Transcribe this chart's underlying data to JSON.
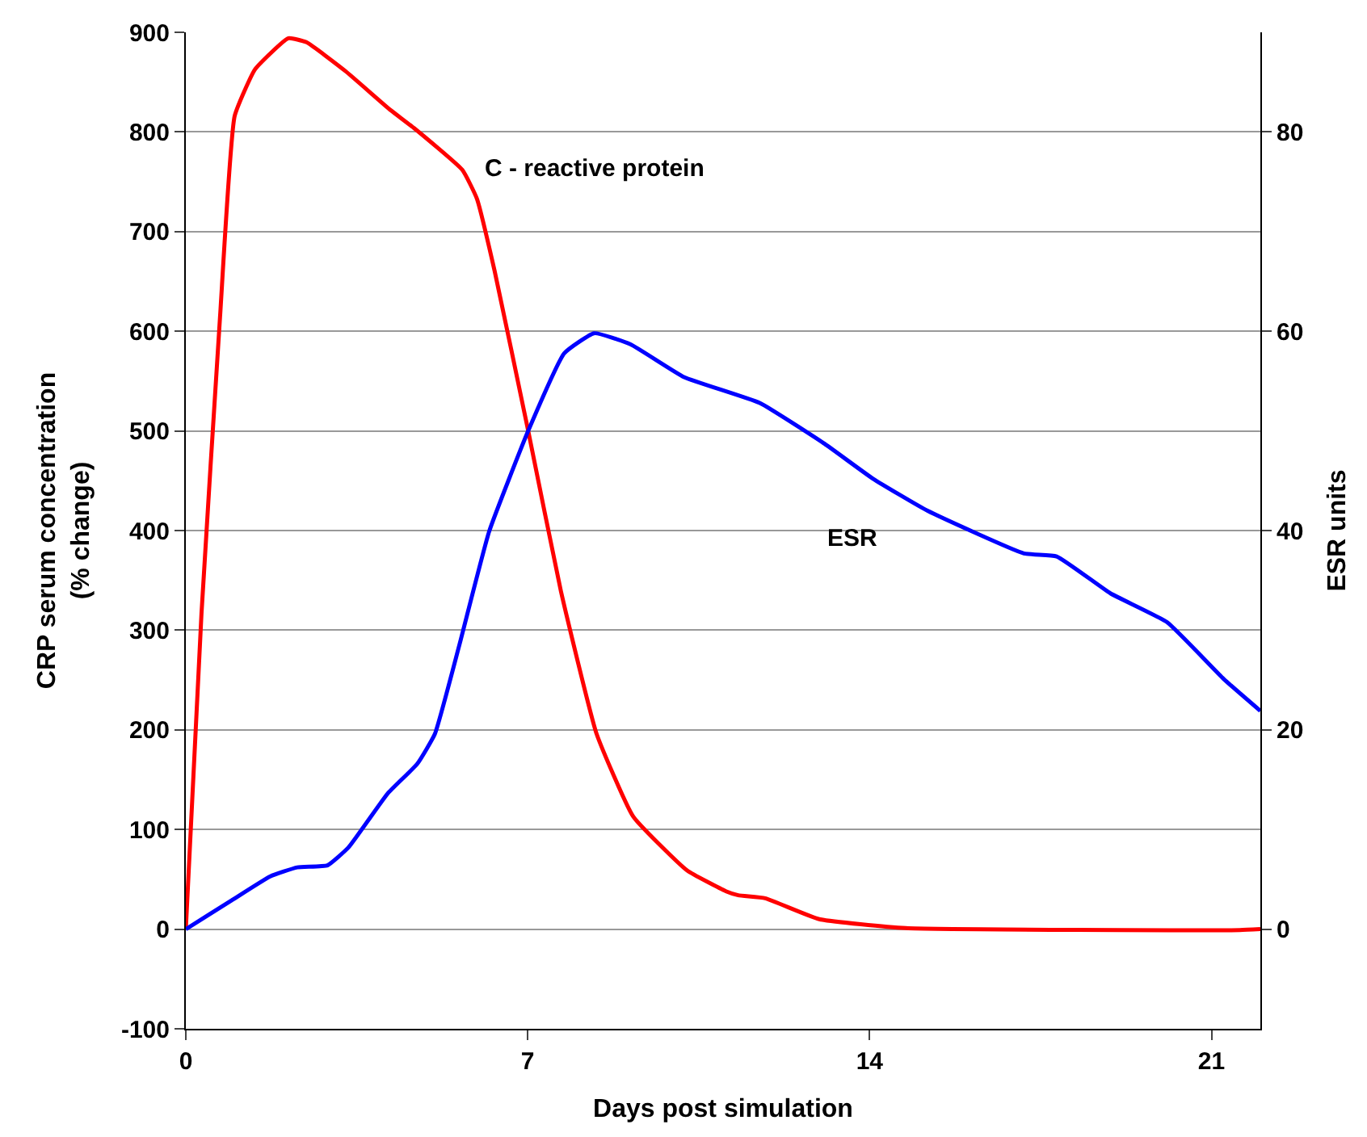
{
  "chart_data": {
    "type": "line",
    "xlabel": "Days post simulation",
    "ylabel": "CRP serum concentration\n(% change)",
    "y2label": "ESR units",
    "series": [
      {
        "name": "C - reactive protein",
        "color": "#ff0000",
        "x": [
          0,
          0.32,
          0.7,
          1.0,
          1.42,
          2.1,
          2.47,
          3.27,
          4.19,
          4.67,
          5.66,
          5.96,
          6.32,
          7.01,
          7.68,
          8.41,
          9.16,
          10.26,
          11.06,
          11.31,
          11.86,
          12.97,
          14.74,
          21.58,
          22
        ],
        "values": [
          0,
          316,
          614,
          816,
          863,
          894,
          890,
          861,
          822,
          804,
          762,
          733,
          661,
          500,
          339,
          196,
          113,
          59,
          38,
          34,
          31,
          10,
          1,
          -1,
          0
        ]
      },
      {
        "name": "ESR",
        "color": "#0000ff",
        "axis": "y2",
        "x": [
          0,
          0.94,
          1.73,
          2.28,
          2.9,
          3.33,
          4.13,
          4.74,
          5.1,
          5.6,
          6.21,
          7.01,
          7.75,
          8.36,
          9.1,
          10.2,
          11.75,
          13.08,
          14.07,
          15.18,
          17.16,
          17.83,
          18.93,
          20.09,
          21.25,
          22
        ],
        "values": [
          0,
          2.9,
          5.3,
          6.2,
          6.4,
          8.2,
          13.6,
          16.6,
          19.6,
          28.5,
          39.9,
          50,
          57.8,
          59.8,
          58.7,
          55.4,
          52.8,
          48.7,
          45.2,
          42.0,
          37.7,
          37.4,
          33.7,
          30.8,
          25.1,
          21.9
        ]
      }
    ],
    "xlim": [
      0,
      22
    ],
    "xticks": [
      0,
      7,
      14,
      21
    ],
    "ylim": [
      -100,
      900
    ],
    "yticks": [
      -100,
      0,
      100,
      200,
      300,
      400,
      500,
      600,
      700,
      800,
      900
    ],
    "y2lim": [
      -10,
      90
    ],
    "y2ticks": [
      0,
      20,
      40,
      60,
      80
    ],
    "grid": "y",
    "legend": false
  }
}
